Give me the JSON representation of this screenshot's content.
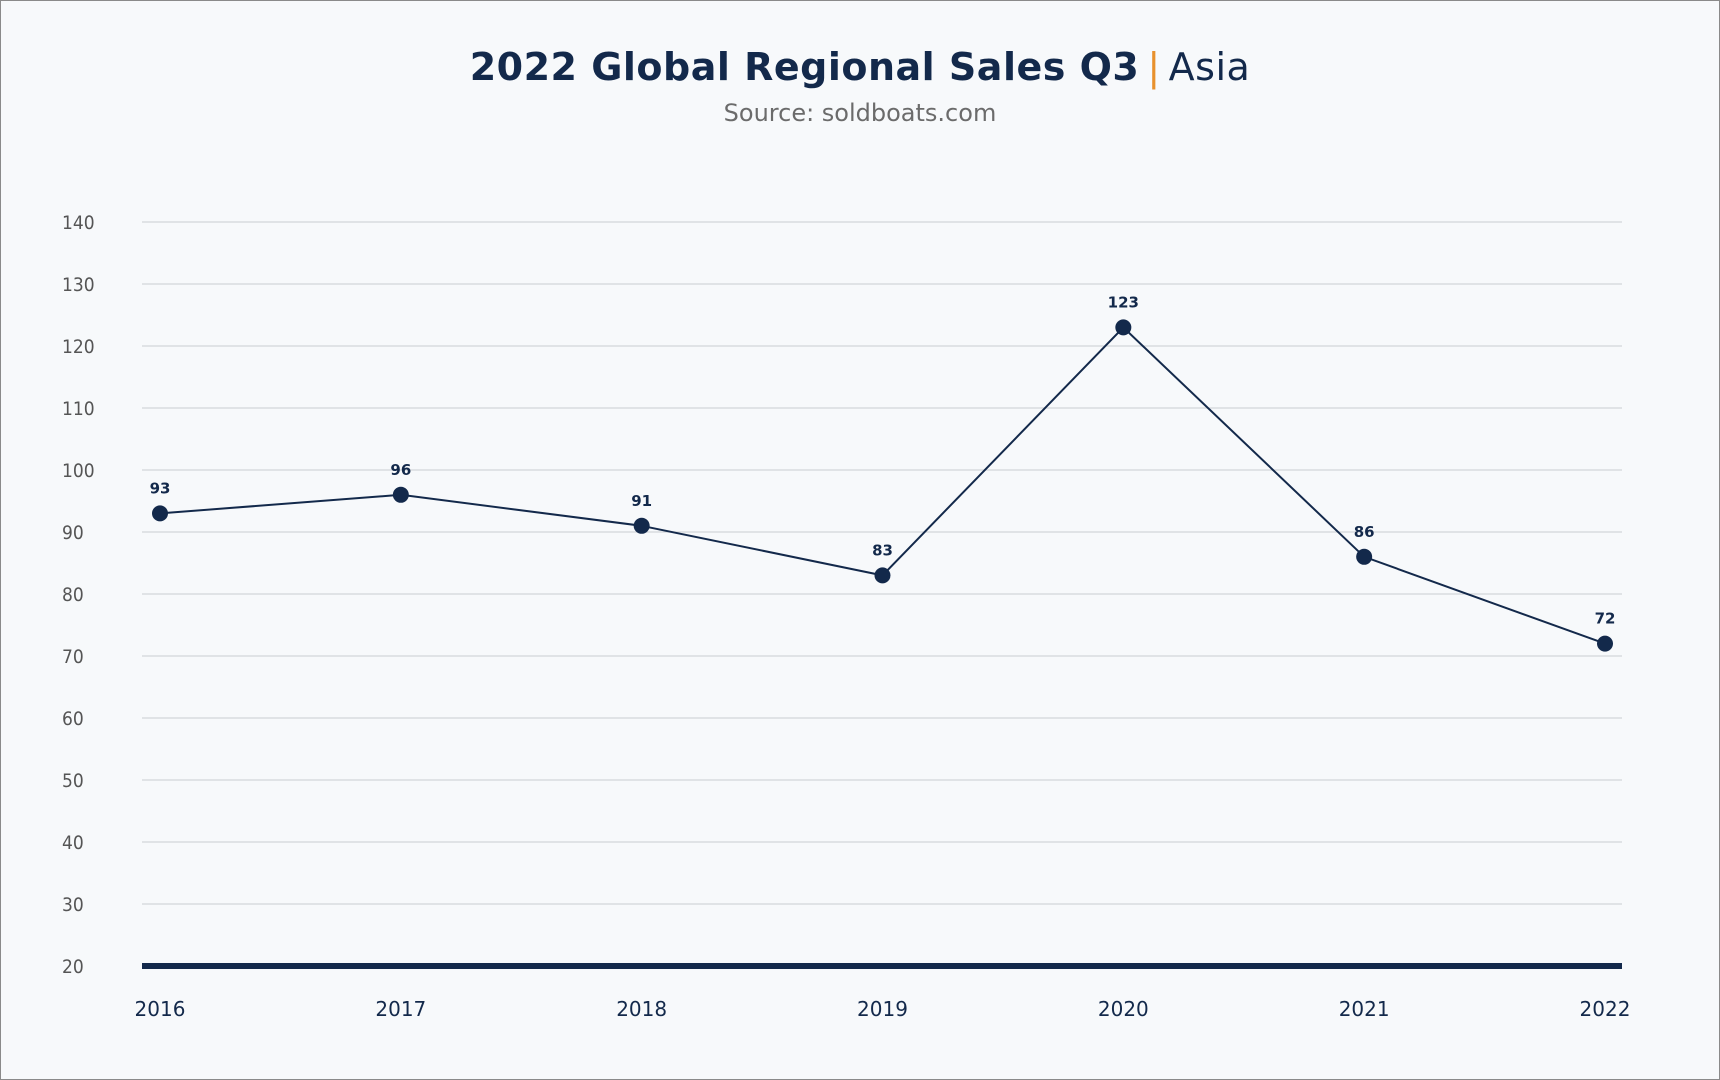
{
  "header": {
    "title_main": "2022 Global Regional Sales Q3",
    "title_separator": "|",
    "title_region": "Asia",
    "subtitle": "Source: soldboats.com"
  },
  "colors": {
    "line": "#13294b",
    "accent": "#e8912d",
    "grid": "#d3d6da",
    "axis": "#13294b",
    "background": "#f7f9fb"
  },
  "chart_data": {
    "type": "line",
    "title": "2022 Global Regional Sales Q3 | Asia",
    "subtitle": "Source: soldboats.com",
    "categories": [
      "2016",
      "2017",
      "2018",
      "2019",
      "2020",
      "2021",
      "2022"
    ],
    "series": [
      {
        "values": [
          93,
          96,
          91,
          83,
          123,
          86,
          72
        ]
      }
    ],
    "yticks": [
      20,
      30,
      40,
      50,
      60,
      70,
      80,
      90,
      100,
      110,
      120,
      130,
      140
    ],
    "ylim": [
      20,
      140
    ],
    "xlabel": "",
    "ylabel": "",
    "grid": true,
    "legend": "none",
    "data_labels": true
  }
}
